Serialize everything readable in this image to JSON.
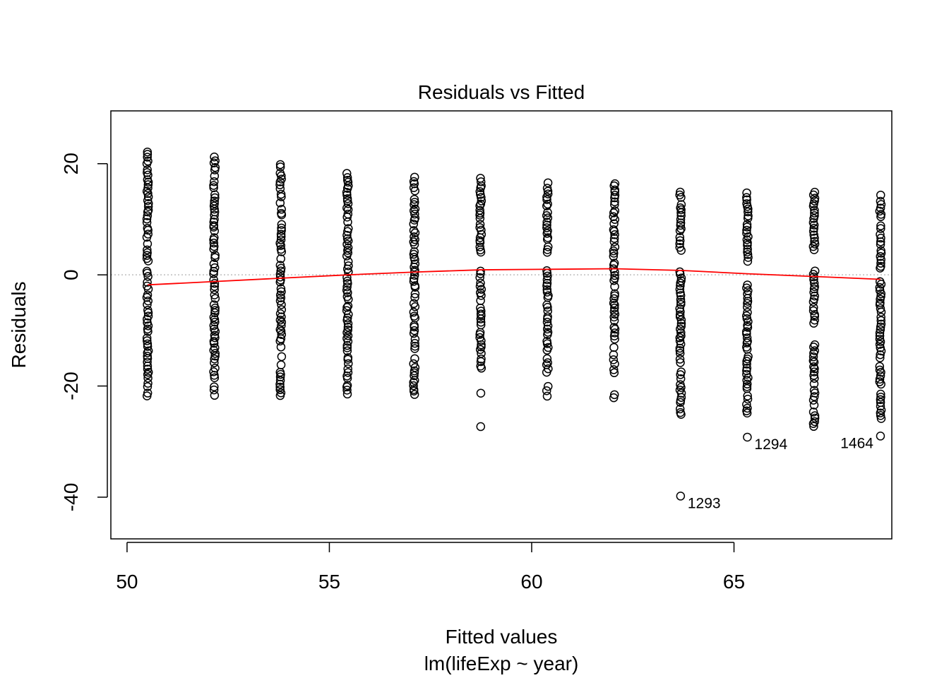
{
  "chart_data": {
    "type": "scatter",
    "title": "Residuals vs Fitted",
    "xlabel": "Fitted values",
    "sublabel": "lm(lifeExp ~ year)",
    "ylabel": "Residuals",
    "xlim": [
      49.6,
      68.9
    ],
    "ylim": [
      -47.5,
      29.5
    ],
    "xticks": [
      {
        "value": 50,
        "label": "50"
      },
      {
        "value": 55,
        "label": "55"
      },
      {
        "value": 60,
        "label": "60"
      },
      {
        "value": 65,
        "label": "65"
      }
    ],
    "yticks": [
      {
        "value": 20,
        "label": "20"
      },
      {
        "value": 0,
        "label": "0"
      },
      {
        "value": -20,
        "label": "-20"
      },
      {
        "value": -40,
        "label": "-40"
      }
    ],
    "reference_line": {
      "y": 0,
      "style": "dotted",
      "color": "#bebebe"
    },
    "groups": [
      {
        "x": 50.51,
        "min": -21.8,
        "max": 22.2,
        "gaps": []
      },
      {
        "x": 52.16,
        "min": -21.8,
        "max": 21.2,
        "gaps": []
      },
      {
        "x": 53.8,
        "min": -21.8,
        "max": 20.0,
        "gaps": []
      },
      {
        "x": 55.45,
        "min": -21.4,
        "max": 18.8,
        "gaps": []
      },
      {
        "x": 57.1,
        "min": -21.6,
        "max": 17.8,
        "gaps": []
      },
      {
        "x": 58.74,
        "min": -21.8,
        "max": 17.4,
        "gaps": [
          [
            -21.0,
            -17.0
          ],
          [
            1.0,
            4.0
          ]
        ]
      },
      {
        "x": 60.39,
        "min": -21.8,
        "max": 16.8,
        "gaps": [
          [
            -20.0,
            -17.5
          ],
          [
            1.0,
            4.0
          ]
        ]
      },
      {
        "x": 62.04,
        "min": -22.0,
        "max": 16.8,
        "gaps": [
          [
            -21.0,
            -18.0
          ]
        ]
      },
      {
        "x": 63.68,
        "min": -25.2,
        "max": 15.8,
        "gaps": [
          [
            1.0,
            4.0
          ]
        ]
      },
      {
        "x": 65.33,
        "min": -25.0,
        "max": 15.4,
        "gaps": [
          [
            -1.5,
            2.0
          ]
        ]
      },
      {
        "x": 66.98,
        "min": -27.4,
        "max": 15.2,
        "gaps": [
          [
            1.0,
            4.0
          ],
          [
            -12.0,
            -9.0
          ]
        ]
      },
      {
        "x": 68.62,
        "min": -26.4,
        "max": 14.4,
        "gaps": [
          [
            -1.0,
            1.0
          ]
        ]
      }
    ],
    "outliers": [
      {
        "x": 58.74,
        "y": -27.3
      },
      {
        "x": 63.68,
        "y": -39.8,
        "label": "1293"
      },
      {
        "x": 65.33,
        "y": -29.2,
        "label": "1294"
      },
      {
        "x": 68.62,
        "y": -29.0,
        "label": "1464"
      }
    ],
    "smoother": {
      "color": "#ff0000",
      "x": [
        50.51,
        52.16,
        53.8,
        55.45,
        57.1,
        58.74,
        60.39,
        62.04,
        63.68,
        65.33,
        66.98,
        68.62
      ],
      "y": [
        -1.8,
        -1.2,
        -0.6,
        0.0,
        0.5,
        0.9,
        1.0,
        1.1,
        0.8,
        0.2,
        -0.3,
        -0.8
      ]
    },
    "grid": false,
    "legend": "none"
  }
}
